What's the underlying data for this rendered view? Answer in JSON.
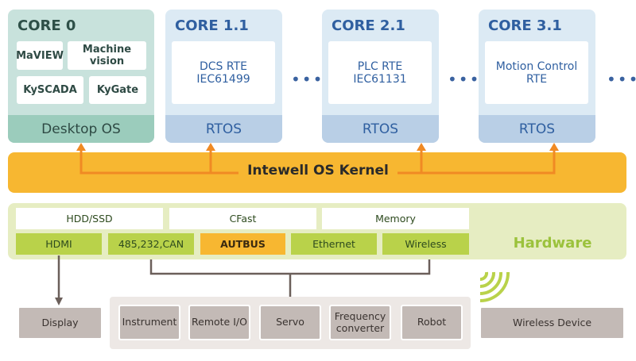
{
  "cores": [
    {
      "title": "CORE 0",
      "apps": [
        "MaVIEW",
        "Machine vision",
        "KySCADA",
        "KyGate"
      ],
      "os": "Desktop OS"
    },
    {
      "title": "CORE 1.1",
      "rte": [
        "DCS RTE",
        "IEC61499"
      ],
      "os": "RTOS"
    },
    {
      "title": "CORE 2.1",
      "rte": [
        "PLC RTE",
        "IEC61131"
      ],
      "os": "RTOS"
    },
    {
      "title": "CORE 3.1",
      "rte": [
        "Motion Control",
        "RTE"
      ],
      "os": "RTOS"
    }
  ],
  "ellipsis": "•••",
  "kernel": "Intewell OS Kernel",
  "hardware": {
    "label": "Hardware",
    "storage": [
      "HDD/SSD",
      "CFast",
      "Memory"
    ],
    "interfaces": [
      "HDMI",
      "485,232,CAN",
      "AUTBUS",
      "Ethernet",
      "Wireless"
    ]
  },
  "devices": {
    "display": "Display",
    "bus": [
      "Instrument",
      "Remote I/O",
      "Servo",
      "Frequency converter",
      "Robot"
    ],
    "wireless": "Wireless Device"
  },
  "colors": {
    "kernel": "#f7b731",
    "hardware": "#e6edc2",
    "interface": "#b9d24a",
    "autbus": "#f7b731",
    "arrow": "#f08a24"
  }
}
